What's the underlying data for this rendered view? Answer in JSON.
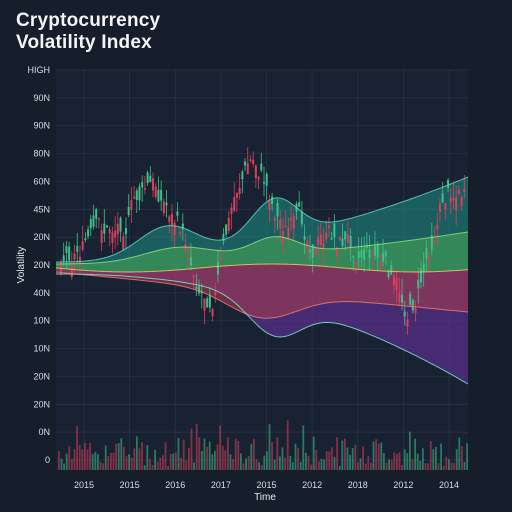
{
  "chart_data": {
    "type": "candlestick",
    "title": [
      "Cryptocurrency",
      "Volatility Index"
    ],
    "xlabel": "Time",
    "ylabel": "Volatility",
    "y_tick_labels": [
      "HIGH",
      "90N",
      "90N",
      "80N",
      "60N",
      "45N",
      "20N",
      "20N",
      "40N",
      "10N",
      "10N",
      "20N",
      "20N",
      "0N",
      "0"
    ],
    "x_tick_labels": [
      "2015",
      "2015",
      "2016",
      "2017",
      "2015",
      "2012",
      "2018",
      "2012",
      "2014"
    ],
    "grid": true,
    "colors": {
      "background": "#161d2b",
      "plot_background": "#182232",
      "grid": "#2a3546",
      "up": "#3fbf8a",
      "down": "#d9405a",
      "band_teal": "#1f8f86",
      "band_green": "#4caf50",
      "band_purple": "#5a2f8f",
      "band_red": "#a23a4e"
    }
  }
}
